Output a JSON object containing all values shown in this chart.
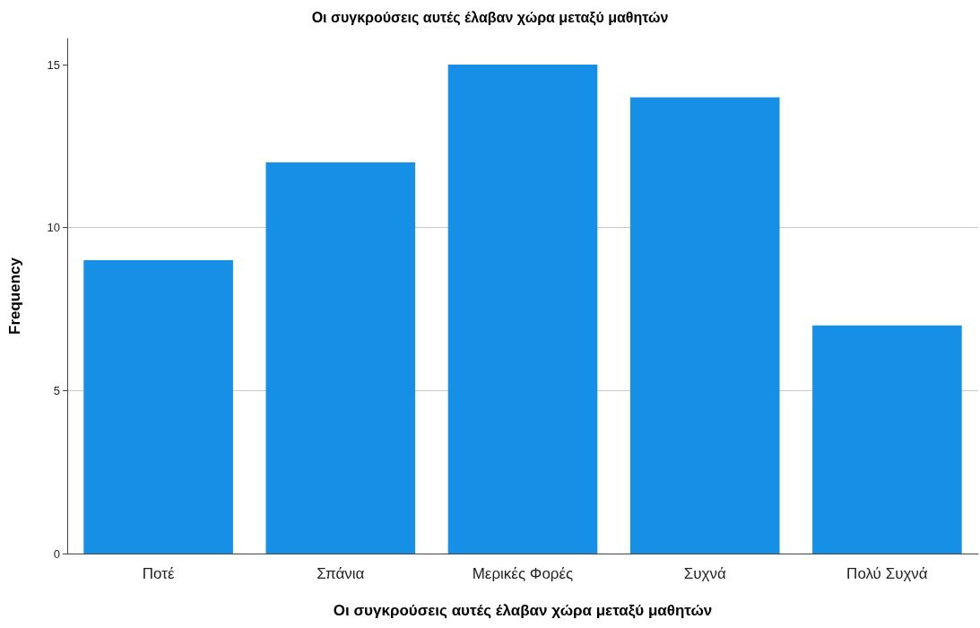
{
  "chart_data": {
    "type": "bar",
    "title": "Οι συγκρούσεις αυτές έλαβαν χώρα μεταξύ μαθητών",
    "xlabel": "Οι συγκρούσεις αυτές έλαβαν χώρα μεταξύ μαθητών",
    "ylabel": "Frequency",
    "categories": [
      "Ποτέ",
      "Σπάνια",
      "Μερικές Φορές",
      "Συχνά",
      "Πολύ Συχνά"
    ],
    "values": [
      9,
      12,
      15,
      14,
      7
    ],
    "color": "#1590e6",
    "ylim": [
      0,
      15.8
    ],
    "yticks": [
      0,
      5,
      10,
      15
    ],
    "grid": "y"
  }
}
